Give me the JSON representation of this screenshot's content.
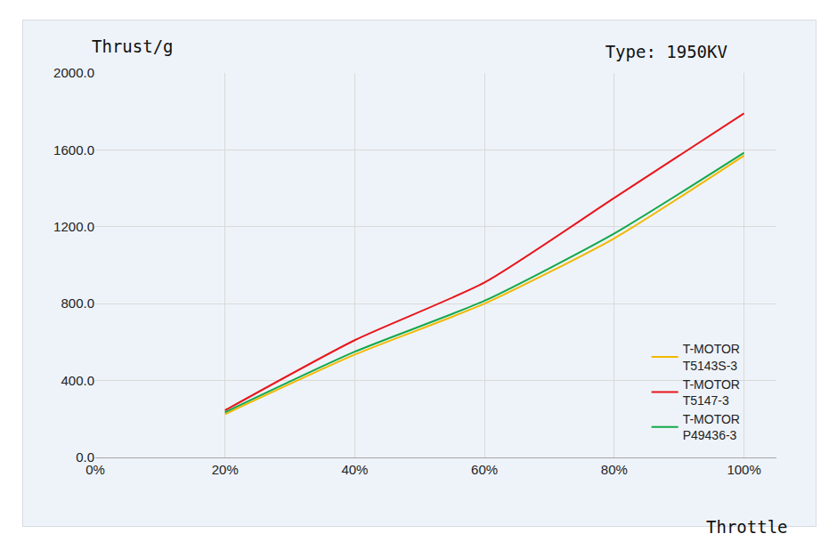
{
  "chart_data": {
    "type": "line",
    "title": "Type: 1950KV",
    "y_label": "Thrust/g",
    "x_label": "Throttle",
    "x": [
      20,
      40,
      60,
      80,
      100
    ],
    "series": [
      {
        "name": "T-MOTOR T5143S-3",
        "color": "#f2b800",
        "values": [
          225,
          535,
          800,
          1140,
          1570
        ]
      },
      {
        "name": "T-MOTOR T5147-3",
        "color": "#e8161c",
        "values": [
          245,
          610,
          910,
          1350,
          1790
        ]
      },
      {
        "name": "T-MOTOR P49436-3",
        "color": "#13a84a",
        "values": [
          235,
          550,
          815,
          1165,
          1585
        ]
      }
    ],
    "xlim": [
      0,
      105
    ],
    "xticks": [
      {
        "value": 0,
        "label": "0%"
      },
      {
        "value": 20,
        "label": "20%"
      },
      {
        "value": 40,
        "label": "40%"
      },
      {
        "value": 60,
        "label": "60%"
      },
      {
        "value": 80,
        "label": "80%"
      },
      {
        "value": 100,
        "label": "100%"
      }
    ],
    "ylim": [
      0,
      2000
    ],
    "yticks": [
      {
        "value": 0,
        "label": "0.0"
      },
      {
        "value": 400,
        "label": "400.0"
      },
      {
        "value": 800,
        "label": "800.0"
      },
      {
        "value": 1200,
        "label": "1200.0"
      },
      {
        "value": 1600,
        "label": "1600.0"
      },
      {
        "value": 2000,
        "label": "2000.0"
      }
    ],
    "grid": true,
    "legend": "lower right"
  }
}
